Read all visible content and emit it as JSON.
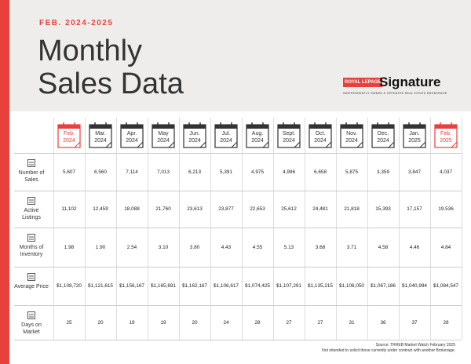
{
  "header": {
    "subtitle": "FEB. 2024-2025",
    "title": [
      "Monthly",
      "Sales Data"
    ],
    "logo": {
      "brand": "ROYAL LEPAGE",
      "name": "Signature",
      "tagline": "INDEPENDENTLY OWNED & OPERATED REAL ESTATE BROKERAGE"
    }
  },
  "table": {
    "columns": [
      {
        "month": "Feb.",
        "year": "2024"
      },
      {
        "month": "Mar.",
        "year": "2024"
      },
      {
        "month": "Apr.",
        "year": "2024"
      },
      {
        "month": "May",
        "year": "2024"
      },
      {
        "month": "Jun.",
        "year": "2024"
      },
      {
        "month": "Jul.",
        "year": "2024"
      },
      {
        "month": "Aug.",
        "year": "2024"
      },
      {
        "month": "Sept.",
        "year": "2024"
      },
      {
        "month": "Oct.",
        "year": "2024"
      },
      {
        "month": "Nov.",
        "year": "2024"
      },
      {
        "month": "Dec.",
        "year": "2024"
      },
      {
        "month": "Jan.",
        "year": "2025"
      },
      {
        "month": "Feb.",
        "year": "2025"
      }
    ],
    "rows": [
      {
        "label": "Number of Sales",
        "values": [
          "5,607",
          "6,560",
          "7,114",
          "7,013",
          "6,213",
          "5,391",
          "4,975",
          "4,996",
          "6,658",
          "5,875",
          "3,359",
          "3,847",
          "4,037"
        ]
      },
      {
        "label": "Active Listings",
        "values": [
          "11,102",
          "12,459",
          "18,088",
          "21,760",
          "23,613",
          "23,877",
          "22,653",
          "25,612",
          "24,481",
          "21,818",
          "15,393",
          "17,157",
          "19,536"
        ]
      },
      {
        "label": "Months of Inventory",
        "values": [
          "1.98",
          "1.90",
          "2.54",
          "3.10",
          "3.80",
          "4.43",
          "4.55",
          "5.13",
          "3.68",
          "3.71",
          "4.58",
          "4.46",
          "4.84"
        ]
      },
      {
        "label": "Average Price",
        "values": [
          "$1,108,720",
          "$1,121,615",
          "$1,156,167",
          "$1,165,691",
          "$1,162,167",
          "$1,106,617",
          "$1,074,425",
          "$1,107,291",
          "$1,135,215",
          "$1,106,050",
          "$1,067,186",
          "$1,040,994",
          "$1,084,547"
        ]
      },
      {
        "label": "Days on Market",
        "values": [
          "25",
          "20",
          "19",
          "19",
          "20",
          "24",
          "28",
          "27",
          "27",
          "31",
          "36",
          "37",
          "28"
        ]
      }
    ]
  },
  "footer": {
    "source": "Source: TRREB Market Watch February 2025",
    "disclaimer": "Not intended to solicit those currently under contract with another Brokerage."
  }
}
